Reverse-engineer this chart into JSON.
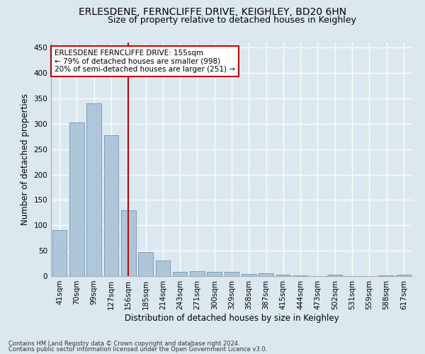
{
  "title1": "ERLESDENE, FERNCLIFFE DRIVE, KEIGHLEY, BD20 6HN",
  "title2": "Size of property relative to detached houses in Keighley",
  "xlabel": "Distribution of detached houses by size in Keighley",
  "ylabel": "Number of detached properties",
  "categories": [
    "41sqm",
    "70sqm",
    "99sqm",
    "127sqm",
    "156sqm",
    "185sqm",
    "214sqm",
    "243sqm",
    "271sqm",
    "300sqm",
    "329sqm",
    "358sqm",
    "387sqm",
    "415sqm",
    "444sqm",
    "473sqm",
    "502sqm",
    "531sqm",
    "559sqm",
    "588sqm",
    "617sqm"
  ],
  "values": [
    90,
    302,
    340,
    277,
    130,
    47,
    30,
    9,
    10,
    9,
    8,
    4,
    5,
    3,
    1,
    0,
    3,
    0,
    0,
    2,
    3
  ],
  "bar_color": "#aec6d8",
  "bar_edge_color": "#6699bb",
  "property_index": 4,
  "property_line_color": "#cc0000",
  "annotation_text": "ERLESDENE FERNCLIFFE DRIVE: 155sqm\n← 79% of detached houses are smaller (998)\n20% of semi-detached houses are larger (251) →",
  "annotation_box_color": "#ffffff",
  "annotation_box_edge": "#cc0000",
  "footer1": "Contains HM Land Registry data © Crown copyright and database right 2024.",
  "footer2": "Contains public sector information licensed under the Open Government Licence v3.0.",
  "ylim": [
    0,
    460
  ],
  "yticks": [
    0,
    50,
    100,
    150,
    200,
    250,
    300,
    350,
    400,
    450
  ],
  "background_color": "#dce8f0",
  "grid_color": "#ffffff",
  "title1_fontsize": 10,
  "title2_fontsize": 9,
  "xlabel_fontsize": 8.5,
  "ylabel_fontsize": 8.5,
  "tick_fontsize": 7.5,
  "annotation_fontsize": 7.5,
  "footer_fontsize": 6.0
}
